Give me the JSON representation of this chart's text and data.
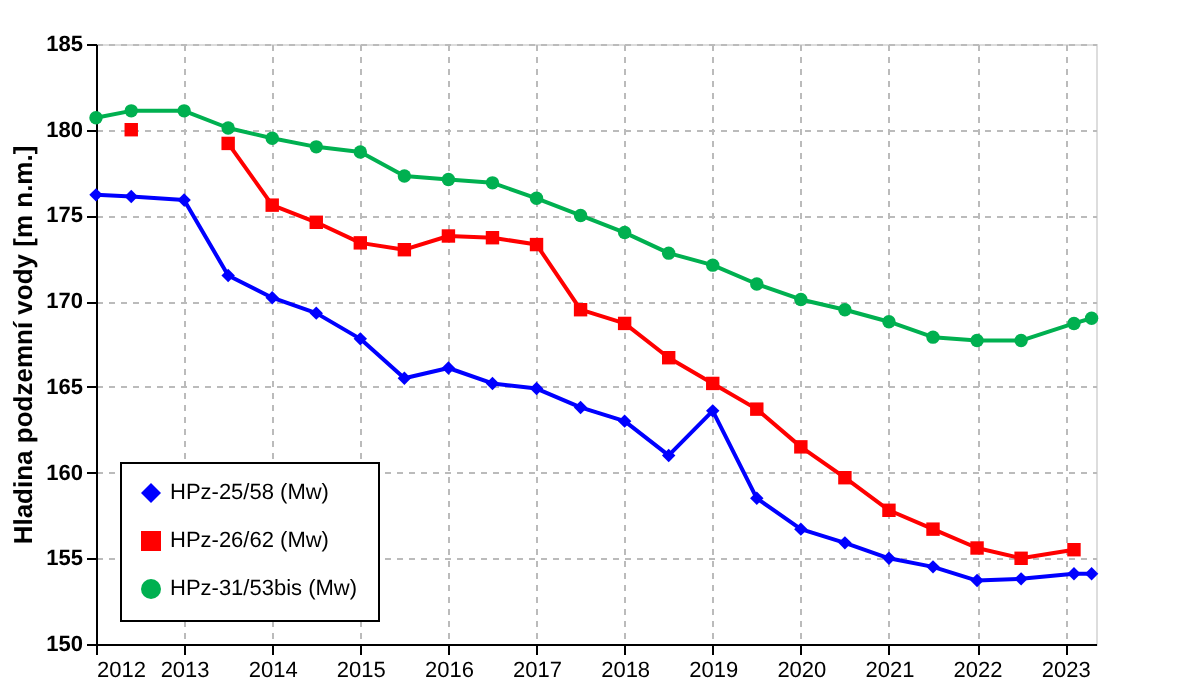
{
  "chart_data": {
    "type": "line",
    "ylabel": "Hladina podzemní vody [m n.m.]",
    "xlim": [
      2012,
      2023.35
    ],
    "xticks": [
      2012,
      2013,
      2014,
      2015,
      2016,
      2017,
      2018,
      2019,
      2020,
      2021,
      2022,
      2023
    ],
    "ylim": [
      150,
      185
    ],
    "yticks": [
      150,
      155,
      160,
      165,
      170,
      175,
      180,
      185
    ],
    "grid": true,
    "legend": "bottom left",
    "line_style": "solid",
    "series": [
      {
        "name": "HPz-25/58 (Mw)",
        "color": "#0000ff",
        "marker": "diamond",
        "x": [
          2012.0,
          2012.4,
          2013.0,
          2013.5,
          2014.0,
          2014.5,
          2015.0,
          2015.5,
          2016.0,
          2016.5,
          2017.0,
          2017.5,
          2018.0,
          2018.5,
          2019.0,
          2019.5,
          2020.0,
          2020.5,
          2021.0,
          2021.5,
          2022.0,
          2022.5,
          2023.1,
          2023.3
        ],
        "values": [
          176.2,
          176.1,
          175.9,
          171.5,
          170.2,
          169.3,
          167.8,
          165.5,
          166.1,
          165.2,
          164.9,
          163.8,
          163.0,
          161.0,
          163.6,
          158.5,
          156.7,
          155.9,
          155.0,
          154.5,
          153.7,
          153.8,
          154.1,
          154.1
        ]
      },
      {
        "name": "HPz-26/62 (Mw)",
        "color": "#ff0000",
        "marker": "square",
        "x": [
          2012.4,
          2013.0,
          2013.5,
          2014.0,
          2014.5,
          2015.0,
          2015.5,
          2016.0,
          2016.5,
          2017.0,
          2017.5,
          2018.0,
          2018.5,
          2019.0,
          2019.5,
          2020.0,
          2020.5,
          2021.0,
          2021.5,
          2022.0,
          2022.5,
          2023.1
        ],
        "values": [
          180.0,
          null,
          179.2,
          175.6,
          174.6,
          173.4,
          173.0,
          173.8,
          173.7,
          173.3,
          169.5,
          168.7,
          166.7,
          165.2,
          163.7,
          161.5,
          159.7,
          157.8,
          156.7,
          155.6,
          155.0,
          155.5
        ]
      },
      {
        "name": "HPz-31/53bis (Mw)",
        "color": "#00b050",
        "marker": "circle",
        "x": [
          2012.0,
          2012.4,
          2013.0,
          2013.5,
          2014.0,
          2014.5,
          2015.0,
          2015.5,
          2016.0,
          2016.5,
          2017.0,
          2017.5,
          2018.0,
          2018.5,
          2019.0,
          2019.5,
          2020.0,
          2020.5,
          2021.0,
          2021.5,
          2022.0,
          2022.5,
          2023.1,
          2023.3
        ],
        "values": [
          180.7,
          181.1,
          181.1,
          180.1,
          179.5,
          179.0,
          178.7,
          177.3,
          177.1,
          176.9,
          176.0,
          175.0,
          174.0,
          172.8,
          172.1,
          171.0,
          170.1,
          169.5,
          168.8,
          167.9,
          167.7,
          167.7,
          168.7,
          169.0
        ]
      }
    ]
  }
}
